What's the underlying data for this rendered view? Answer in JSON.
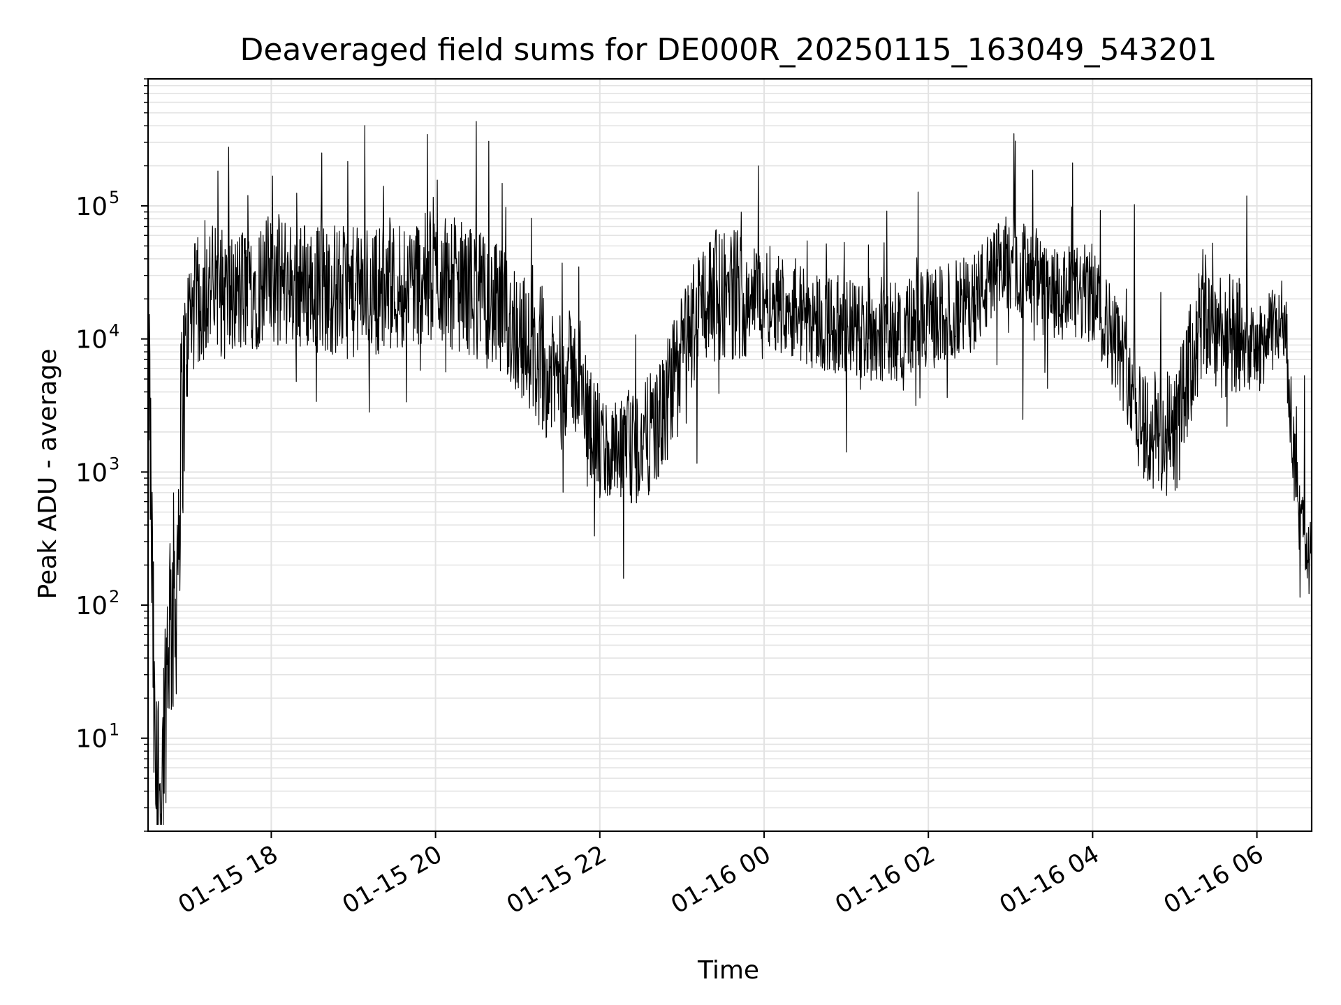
{
  "chart_data": {
    "type": "line",
    "title": "Deaveraged field sums for DE000R_20250115_163049_543201",
    "xlabel": "Time",
    "ylabel": "Peak ADU - average",
    "y_scale": "log",
    "ylim": [
      2,
      900000
    ],
    "xlim": [
      "2025-01-15 16:30",
      "2025-01-16 06:40"
    ],
    "grid": true,
    "line_color": "#000000",
    "x_tick_labels": [
      "01-15 18",
      "01-15 20",
      "01-15 22",
      "01-16 00",
      "01-16 02",
      "01-16 04",
      "01-16 06"
    ],
    "x_tick_values": [
      "2025-01-15 18:00",
      "2025-01-15 20:00",
      "2025-01-15 22:00",
      "2025-01-16 00:00",
      "2025-01-16 02:00",
      "2025-01-16 04:00",
      "2025-01-16 06:00"
    ],
    "y_tick_values": [
      10,
      100,
      1000,
      10000,
      100000
    ],
    "y_tick_labels": [
      {
        "base": "10",
        "exp": "1"
      },
      {
        "base": "10",
        "exp": "2"
      },
      {
        "base": "10",
        "exp": "3"
      },
      {
        "base": "10",
        "exp": "4"
      },
      {
        "base": "10",
        "exp": "5"
      }
    ],
    "series": [
      {
        "x": [
          "2025-01-15 16:30",
          "2025-01-15 16:35",
          "2025-01-15 16:40",
          "2025-01-15 16:45",
          "2025-01-15 16:50",
          "2025-01-15 16:55",
          "2025-01-15 17:00",
          "2025-01-15 17:15",
          "2025-01-15 17:30",
          "2025-01-15 17:45",
          "2025-01-15 18:00",
          "2025-01-15 18:30",
          "2025-01-15 19:00",
          "2025-01-15 19:30",
          "2025-01-15 20:00",
          "2025-01-15 20:30",
          "2025-01-15 21:00",
          "2025-01-15 21:20",
          "2025-01-15 21:40",
          "2025-01-15 22:00",
          "2025-01-15 22:15",
          "2025-01-15 22:30",
          "2025-01-15 22:45",
          "2025-01-15 23:00",
          "2025-01-15 23:15",
          "2025-01-15 23:30",
          "2025-01-16 00:00",
          "2025-01-16 00:30",
          "2025-01-16 01:00",
          "2025-01-16 01:30",
          "2025-01-16 02:00",
          "2025-01-16 02:30",
          "2025-01-16 03:00",
          "2025-01-16 03:30",
          "2025-01-16 04:00",
          "2025-01-16 04:20",
          "2025-01-16 04:40",
          "2025-01-16 05:00",
          "2025-01-16 05:20",
          "2025-01-16 05:40",
          "2025-01-16 06:00",
          "2025-01-16 06:20",
          "2025-01-16 06:30",
          "2025-01-16 06:40"
        ],
        "y": [
          20000,
          5,
          4,
          80,
          100,
          3000,
          15000,
          25000,
          20000,
          25000,
          28000,
          25000,
          22000,
          25000,
          30000,
          22000,
          12000,
          5000,
          6000,
          1500,
          1200,
          1600,
          2500,
          8000,
          20000,
          22000,
          22000,
          15000,
          12000,
          11000,
          14000,
          18000,
          40000,
          20000,
          22000,
          8000,
          2000,
          1800,
          15000,
          10000,
          8000,
          15000,
          500,
          200
        ]
      }
    ]
  }
}
